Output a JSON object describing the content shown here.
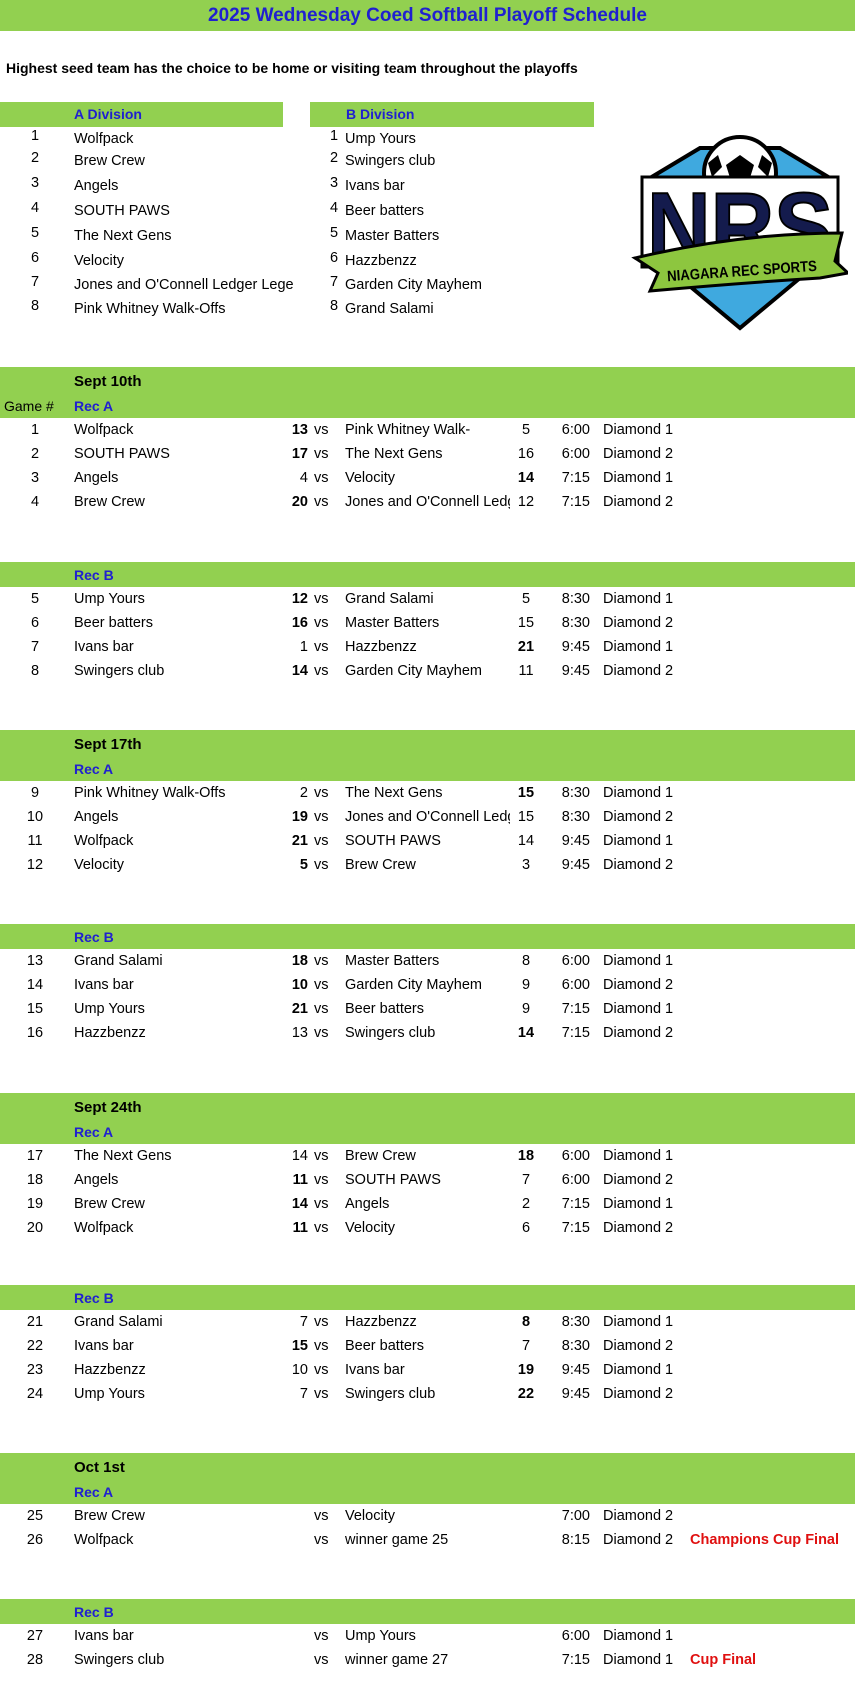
{
  "title": "2025 Wednesday Coed Softball Playoff Schedule",
  "subtitle": "Highest seed team has the choice to be home or visiting team throughout the playoffs",
  "divisions": [
    {
      "label": "A Division",
      "teams": [
        {
          "seed": "1",
          "name": "Wolfpack"
        },
        {
          "seed": "2",
          "name": "Brew Crew"
        },
        {
          "seed": "3",
          "name": "Angels"
        },
        {
          "seed": "4",
          "name": "SOUTH PAWS"
        },
        {
          "seed": "5",
          "name": "The Next Gens"
        },
        {
          "seed": "6",
          "name": "Velocity"
        },
        {
          "seed": "7",
          "name": "Jones and O'Connell Ledger Lege"
        },
        {
          "seed": "8",
          "name": "Pink Whitney Walk-Offs"
        }
      ]
    },
    {
      "label": "B Division",
      "teams": [
        {
          "seed": "1",
          "name": "Ump Yours"
        },
        {
          "seed": "2",
          "name": "Swingers club"
        },
        {
          "seed": "3",
          "name": "Ivans bar"
        },
        {
          "seed": "4",
          "name": "Beer batters"
        },
        {
          "seed": "5",
          "name": "Master Batters"
        },
        {
          "seed": "6",
          "name": "Hazzbenzz"
        },
        {
          "seed": "7",
          "name": "Garden City Mayhem"
        },
        {
          "seed": "8",
          "name": "Grand Salami"
        }
      ]
    }
  ],
  "logo": {
    "text": "NRS",
    "banner": "NIAGARA REC SPORTS",
    "colors": {
      "navy": "#141B4D",
      "blue": "#3FA9DF",
      "green": "#8DC63F"
    }
  },
  "game_col_label": "Game #",
  "vs_label": "vs",
  "colors": {
    "header_green": "#92D050",
    "accent_blue": "#2020D0",
    "note_red": "#E01010"
  },
  "sections": [
    {
      "date": "Sept 10th",
      "rec": "Rec A",
      "show_game_label": true,
      "games": [
        {
          "game": "1",
          "team1": "Wolfpack",
          "score1": "13",
          "team2": "Pink Whitney Walk-",
          "score2": "5",
          "winner": 1,
          "time": "6:00",
          "field": "Diamond 1"
        },
        {
          "game": "2",
          "team1": "SOUTH PAWS",
          "score1": "17",
          "team2": "The Next Gens",
          "score2": "16",
          "winner": 1,
          "time": "6:00",
          "field": "Diamond 2"
        },
        {
          "game": "3",
          "team1": "Angels",
          "score1": "4",
          "team2": "Velocity",
          "score2": "14",
          "winner": 2,
          "time": "7:15",
          "field": "Diamond 1"
        },
        {
          "game": "4",
          "team1": "Brew Crew",
          "score1": "20",
          "team2": "Jones and O'Connell Ledger Legends",
          "score2": "12",
          "winner": 1,
          "time": "7:15",
          "field": "Diamond 2"
        }
      ]
    },
    {
      "rec": "Rec B",
      "games": [
        {
          "game": "5",
          "team1": "Ump Yours",
          "score1": "12",
          "team2": "Grand Salami",
          "score2": "5",
          "winner": 1,
          "time": "8:30",
          "field": "Diamond 1"
        },
        {
          "game": "6",
          "team1": "Beer batters",
          "score1": "16",
          "team2": "Master Batters",
          "score2": "15",
          "winner": 1,
          "time": "8:30",
          "field": "Diamond 2"
        },
        {
          "game": "7",
          "team1": "Ivans bar",
          "score1": "1",
          "team2": "Hazzbenzz",
          "score2": "21",
          "winner": 2,
          "time": "9:45",
          "field": "Diamond 1"
        },
        {
          "game": "8",
          "team1": "Swingers club",
          "score1": "14",
          "team2": "Garden City Mayhem",
          "score2": "11",
          "winner": 1,
          "time": "9:45",
          "field": "Diamond 2"
        }
      ]
    },
    {
      "date": "Sept 17th",
      "rec": "Rec A",
      "games": [
        {
          "game": "9",
          "team1": "Pink Whitney Walk-Offs",
          "score1": "2",
          "team2": "The Next Gens",
          "score2": "15",
          "winner": 2,
          "time": "8:30",
          "field": "Diamond 1"
        },
        {
          "game": "10",
          "team1": "Angels",
          "score1": "19",
          "team2": "Jones and O'Connell Ledger Legends",
          "score2": "15",
          "winner": 1,
          "time": "8:30",
          "field": "Diamond 2"
        },
        {
          "game": "11",
          "team1": "Wolfpack",
          "score1": "21",
          "team2": "SOUTH PAWS",
          "score2": "14",
          "winner": 1,
          "time": "9:45",
          "field": "Diamond 1"
        },
        {
          "game": "12",
          "team1": "Velocity",
          "score1": "5",
          "team2": "Brew Crew",
          "score2": "3",
          "winner": 1,
          "time": "9:45",
          "field": "Diamond 2"
        }
      ]
    },
    {
      "rec": "Rec B",
      "games": [
        {
          "game": "13",
          "team1": "Grand Salami",
          "score1": "18",
          "team2": "Master Batters",
          "score2": "8",
          "winner": 1,
          "time": "6:00",
          "field": "Diamond 1"
        },
        {
          "game": "14",
          "team1": "Ivans bar",
          "score1": "10",
          "team2": "Garden City Mayhem",
          "score2": "9",
          "winner": 1,
          "time": "6:00",
          "field": "Diamond 2"
        },
        {
          "game": "15",
          "team1": "Ump Yours",
          "score1": "21",
          "team2": "Beer batters",
          "score2": "9",
          "winner": 1,
          "time": "7:15",
          "field": "Diamond 1"
        },
        {
          "game": "16",
          "team1": "Hazzbenzz",
          "score1": "13",
          "team2": "Swingers club",
          "score2": "14",
          "winner": 2,
          "time": "7:15",
          "field": "Diamond 2"
        }
      ]
    },
    {
      "date": "Sept 24th",
      "rec": "Rec A",
      "games": [
        {
          "game": "17",
          "team1": "The Next Gens",
          "score1": "14",
          "team2": "Brew Crew",
          "score2": "18",
          "winner": 2,
          "time": "6:00",
          "field": "Diamond 1"
        },
        {
          "game": "18",
          "team1": "Angels",
          "score1": "11",
          "team2": "SOUTH PAWS",
          "score2": "7",
          "winner": 1,
          "time": "6:00",
          "field": "Diamond 2"
        },
        {
          "game": "19",
          "team1": "Brew Crew",
          "score1": "14",
          "team2": "Angels",
          "score2": "2",
          "winner": 1,
          "time": "7:15",
          "field": "Diamond 1"
        },
        {
          "game": "20",
          "team1": "Wolfpack",
          "score1": "11",
          "team2": "Velocity",
          "score2": "6",
          "winner": 1,
          "time": "7:15",
          "field": "Diamond 2"
        }
      ]
    },
    {
      "rec": "Rec B",
      "games": [
        {
          "game": "21",
          "team1": "Grand Salami",
          "score1": "7",
          "team2": "Hazzbenzz",
          "score2": "8",
          "winner": 2,
          "time": "8:30",
          "field": "Diamond 1"
        },
        {
          "game": "22",
          "team1": "Ivans bar",
          "score1": "15",
          "team2": "Beer batters",
          "score2": "7",
          "winner": 1,
          "time": "8:30",
          "field": "Diamond 2"
        },
        {
          "game": "23",
          "team1": "Hazzbenzz",
          "score1": "10",
          "team2": "Ivans bar",
          "score2": "19",
          "winner": 2,
          "time": "9:45",
          "field": "Diamond 1"
        },
        {
          "game": "24",
          "team1": "Ump Yours",
          "score1": "7",
          "team2": "Swingers club",
          "score2": "22",
          "winner": 2,
          "time": "9:45",
          "field": "Diamond 2"
        }
      ]
    },
    {
      "date": "Oct 1st",
      "rec": "Rec A",
      "games": [
        {
          "game": "25",
          "team1": "Brew Crew",
          "score1": "",
          "team2": "Velocity",
          "score2": "",
          "winner": 0,
          "time": "7:00",
          "field": "Diamond 2"
        },
        {
          "game": "26",
          "team1": "Wolfpack",
          "score1": "",
          "team2": "winner game 25",
          "score2": "",
          "winner": 0,
          "time": "8:15",
          "field": "Diamond 2",
          "note": "Champions Cup Final"
        }
      ]
    },
    {
      "rec": "Rec B",
      "games": [
        {
          "game": "27",
          "team1": "Ivans bar",
          "score1": "",
          "team2": "Ump Yours",
          "score2": "",
          "winner": 0,
          "time": "6:00",
          "field": "Diamond 1"
        },
        {
          "game": "28",
          "team1": "Swingers club",
          "score1": "",
          "team2": "winner game 27",
          "score2": "",
          "winner": 0,
          "time": "7:15",
          "field": "Diamond 1",
          "note": "Cup Final"
        }
      ]
    }
  ]
}
